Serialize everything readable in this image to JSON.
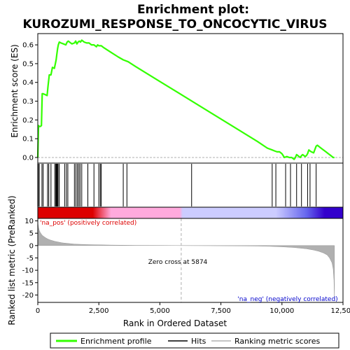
{
  "chart_data": {
    "type": "line",
    "title_line1": "Enrichment plot:",
    "title_line2": "KUROZUMI_RESPONSE_TO_ONCOCYTIC_VIRUS",
    "xlabel": "Rank in Ordered Dataset",
    "ylabel_top": "Enrichment score (ES)",
    "ylabel_bottom": "Ranked list metric (PreRanked)",
    "xlim": [
      0,
      12500
    ],
    "x_ticks": [
      0,
      2500,
      5000,
      7500,
      10000,
      12500
    ],
    "x_tick_labels": [
      "0",
      "2,500",
      "5,000",
      "7,500",
      "10,000",
      "12,500"
    ],
    "es_ylim": [
      -0.03,
      0.66
    ],
    "es_ticks": [
      0.0,
      0.1,
      0.2,
      0.3,
      0.4,
      0.5,
      0.6
    ],
    "es_tick_labels": [
      "0.0",
      "0.1",
      "0.2",
      "0.3",
      "0.4",
      "0.5",
      "0.6"
    ],
    "metric_ylim": [
      -23,
      11
    ],
    "metric_ticks": [
      10,
      5,
      0,
      -5,
      -10,
      -15,
      -20
    ],
    "metric_tick_labels": [
      "10",
      "5",
      "0",
      "-5",
      "-10",
      "-15",
      "-20"
    ],
    "enrichment_profile": {
      "x": [
        0,
        30,
        60,
        100,
        150,
        180,
        210,
        300,
        380,
        420,
        470,
        540,
        600,
        680,
        720,
        750,
        780,
        810,
        840,
        880,
        950,
        1050,
        1150,
        1200,
        1250,
        1300,
        1400,
        1500,
        1550,
        1600,
        1650,
        1700,
        1750,
        1800,
        1900,
        2000,
        2100,
        2200,
        2300,
        2400,
        2450,
        2500,
        2550,
        2600,
        2700,
        3000,
        3300,
        3500,
        3700,
        4000,
        5000,
        6000,
        7000,
        8000,
        9000,
        9400,
        9600,
        9700,
        9800,
        9900,
        10000,
        10100,
        10200,
        10300,
        10400,
        10500,
        10550,
        10600,
        10650,
        10700,
        10750,
        10800,
        10850,
        10900,
        10950,
        11000,
        11050,
        11100,
        11150,
        11200,
        11300,
        11400,
        11450,
        11500,
        11600,
        11700,
        11800,
        11900,
        12000,
        12100,
        12150
      ],
      "y": [
        0.0,
        0.17,
        0.165,
        0.165,
        0.17,
        0.34,
        0.34,
        0.335,
        0.33,
        0.38,
        0.44,
        0.44,
        0.48,
        0.475,
        0.5,
        0.52,
        0.55,
        0.58,
        0.6,
        0.615,
        0.61,
        0.605,
        0.6,
        0.615,
        0.62,
        0.615,
        0.605,
        0.61,
        0.62,
        0.605,
        0.615,
        0.62,
        0.615,
        0.625,
        0.615,
        0.61,
        0.61,
        0.6,
        0.6,
        0.59,
        0.6,
        0.595,
        0.595,
        0.595,
        0.585,
        0.56,
        0.535,
        0.52,
        0.51,
        0.485,
        0.405,
        0.325,
        0.245,
        0.165,
        0.085,
        0.05,
        0.04,
        0.035,
        0.03,
        0.03,
        0.02,
        0.0,
        0.005,
        0.0,
        0.0,
        -0.01,
        0.0,
        0.015,
        0.01,
        0.005,
        0.0,
        0.01,
        0.015,
        0.01,
        0.005,
        0.01,
        0.02,
        0.04,
        0.035,
        0.03,
        0.025,
        0.06,
        0.065,
        0.06,
        0.05,
        0.04,
        0.03,
        0.02,
        0.01,
        0.0,
        0.0
      ]
    },
    "hits": [
      20,
      60,
      170,
      220,
      400,
      450,
      540,
      700,
      740,
      760,
      780,
      800,
      830,
      880,
      1100,
      1170,
      1230,
      1500,
      1560,
      1620,
      1680,
      1730,
      1800,
      2050,
      2300,
      2500,
      2560,
      2600,
      3500,
      3650,
      6300,
      9600,
      9750,
      10150,
      10350,
      10600,
      10800,
      11050,
      11150,
      11400
    ],
    "ranking_metric": {
      "x": [
        0,
        30,
        60,
        100,
        150,
        200,
        300,
        400,
        500,
        700,
        1000,
        1500,
        2000,
        3000,
        4000,
        5000,
        5874,
        7000,
        8000,
        9000,
        9500,
        10000,
        10500,
        11000,
        11300,
        11500,
        11700,
        11850,
        11950,
        12050,
        12100,
        12130,
        12150
      ],
      "y": [
        9.3,
        7.5,
        6.2,
        5.3,
        4.6,
        4.0,
        3.3,
        2.7,
        2.3,
        1.7,
        1.1,
        0.6,
        0.4,
        0.2,
        0.1,
        0.05,
        0.0,
        -0.05,
        -0.1,
        -0.2,
        -0.3,
        -0.5,
        -0.8,
        -1.3,
        -1.8,
        -2.3,
        -3.0,
        -3.8,
        -5.0,
        -7.0,
        -9.5,
        -14.0,
        -22.5
      ]
    },
    "zero_cross": 5874,
    "zero_cross_label": "Zero cross at 5874",
    "na_pos_label": "'na_pos' (positively correlated)",
    "na_neg_label": "'na_neg' (negatively correlated)",
    "legend": [
      "Enrichment profile",
      "Hits",
      "Ranking metric scores"
    ],
    "colors": {
      "profile": "#33ff00",
      "hits": "#000000",
      "metric": "#b0b0b0",
      "pos_dark": "#dd0000",
      "pos_light": "#ffaadd",
      "neg_light": "#ccccff",
      "neg_dark": "#3300cc",
      "na_pos_text": "#dd0000",
      "na_neg_text": "#0000cc",
      "zero_line": "#b0b0b0"
    }
  }
}
